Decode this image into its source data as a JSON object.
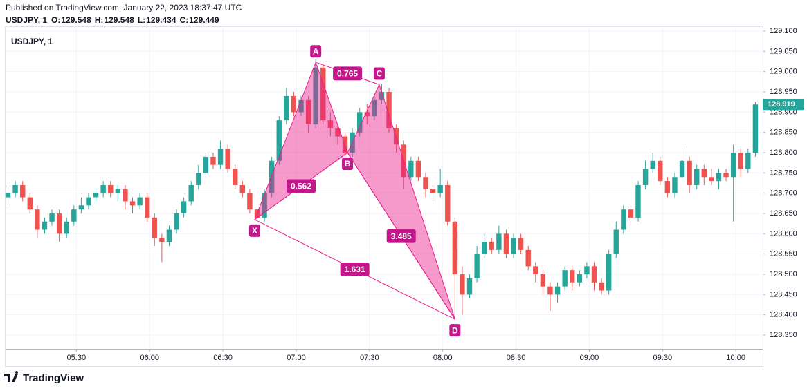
{
  "header": {
    "published": "Published on TradingView.com, January 22, 2023 18:37:47 UTC",
    "symbol": "USDJPY, 1",
    "ohlc": [
      {
        "label": "O:",
        "value": 129.548
      },
      {
        "label": "H:",
        "value": 129.548
      },
      {
        "label": "L:",
        "value": 129.434
      },
      {
        "label": "C:",
        "value": 129.449
      }
    ]
  },
  "footer": {
    "brand": "TradingView"
  },
  "chart_data": {
    "type": "candlestick",
    "title": "USDJPY, 1",
    "x": [
      "05:02",
      "05:05",
      "05:08",
      "05:11",
      "05:14",
      "05:17",
      "05:20",
      "05:23",
      "05:26",
      "05:29",
      "05:32",
      "05:35",
      "05:38",
      "05:41",
      "05:44",
      "05:47",
      "05:50",
      "05:53",
      "05:56",
      "05:59",
      "06:02",
      "06:05",
      "06:08",
      "06:11",
      "06:14",
      "06:17",
      "06:20",
      "06:23",
      "06:26",
      "06:29",
      "06:32",
      "06:35",
      "06:38",
      "06:41",
      "06:44",
      "06:47",
      "06:50",
      "06:53",
      "06:56",
      "06:59",
      "07:02",
      "07:05",
      "07:08",
      "07:11",
      "07:14",
      "07:17",
      "07:20",
      "07:23",
      "07:26",
      "07:29",
      "07:32",
      "07:35",
      "07:38",
      "07:41",
      "07:44",
      "07:47",
      "07:50",
      "07:53",
      "07:56",
      "07:59",
      "08:02",
      "08:05",
      "08:08",
      "08:11",
      "08:14",
      "08:17",
      "08:20",
      "08:23",
      "08:26",
      "08:29",
      "08:32",
      "08:35",
      "08:38",
      "08:41",
      "08:44",
      "08:47",
      "08:50",
      "08:53",
      "08:56",
      "08:59",
      "09:02",
      "09:05",
      "09:08",
      "09:11",
      "09:14",
      "09:17",
      "09:20",
      "09:23",
      "09:26",
      "09:29",
      "09:32",
      "09:35",
      "09:38",
      "09:41",
      "09:44",
      "09:47",
      "09:50",
      "09:53",
      "09:56",
      "09:59",
      "10:02",
      "10:05",
      "10:08"
    ],
    "open": [
      128.69,
      128.7,
      128.72,
      128.69,
      128.66,
      128.61,
      128.63,
      128.65,
      128.6,
      128.63,
      128.66,
      128.67,
      128.69,
      128.7,
      128.72,
      128.7,
      128.71,
      128.68,
      128.67,
      128.69,
      128.64,
      128.59,
      128.58,
      128.61,
      128.65,
      128.68,
      128.72,
      128.75,
      128.79,
      128.77,
      128.81,
      128.76,
      128.72,
      128.7,
      128.66,
      128.64,
      128.7,
      128.78,
      128.88,
      128.94,
      128.9,
      128.93,
      128.87,
      129.01,
      128.88,
      128.86,
      128.84,
      128.8,
      128.85,
      128.9,
      128.89,
      128.93,
      128.95,
      128.86,
      128.82,
      128.74,
      128.78,
      128.74,
      128.71,
      128.7,
      128.72,
      128.63,
      128.5,
      128.45,
      128.49,
      128.55,
      128.58,
      128.56,
      128.6,
      128.55,
      128.59,
      128.56,
      128.52,
      128.5,
      128.47,
      128.45,
      128.47,
      128.51,
      128.48,
      128.5,
      128.52,
      128.48,
      128.46,
      128.55,
      128.61,
      128.66,
      128.64,
      128.72,
      128.76,
      128.78,
      128.73,
      128.7,
      128.74,
      128.78,
      128.72,
      128.76,
      128.74,
      128.73,
      128.75,
      128.74,
      128.8,
      128.76,
      128.8
    ],
    "high": [
      128.72,
      128.73,
      128.73,
      128.7,
      128.67,
      128.64,
      128.66,
      128.66,
      128.64,
      128.67,
      128.69,
      128.7,
      128.71,
      128.73,
      128.73,
      128.72,
      128.72,
      128.69,
      128.7,
      128.7,
      128.65,
      128.6,
      128.62,
      128.66,
      128.69,
      128.73,
      128.77,
      128.8,
      128.8,
      128.83,
      128.82,
      128.77,
      128.73,
      128.71,
      128.67,
      128.71,
      128.79,
      128.89,
      128.96,
      128.95,
      128.94,
      128.94,
      129.03,
      129.02,
      128.9,
      128.87,
      128.85,
      128.86,
      128.91,
      128.92,
      128.94,
      128.97,
      128.96,
      128.87,
      128.83,
      128.79,
      128.79,
      128.75,
      128.72,
      128.76,
      128.73,
      128.64,
      128.52,
      128.5,
      128.57,
      128.6,
      128.59,
      128.62,
      128.61,
      128.6,
      128.6,
      128.57,
      128.53,
      128.51,
      128.48,
      128.48,
      128.52,
      128.52,
      128.51,
      128.53,
      128.53,
      128.49,
      128.56,
      128.63,
      128.67,
      128.67,
      128.73,
      128.78,
      128.8,
      128.79,
      128.74,
      128.75,
      128.81,
      128.79,
      128.77,
      128.77,
      128.76,
      128.76,
      128.76,
      128.82,
      128.81,
      128.81,
      128.925
    ],
    "low": [
      128.67,
      128.69,
      128.68,
      128.65,
      128.59,
      128.6,
      128.62,
      128.58,
      128.59,
      128.62,
      128.65,
      128.66,
      128.68,
      128.69,
      128.69,
      128.68,
      128.66,
      128.65,
      128.66,
      128.63,
      128.57,
      128.53,
      128.57,
      128.6,
      128.64,
      128.67,
      128.71,
      128.74,
      128.76,
      128.76,
      128.75,
      128.71,
      128.69,
      128.65,
      128.62,
      128.63,
      128.69,
      128.77,
      128.87,
      128.89,
      128.89,
      128.85,
      128.86,
      128.87,
      128.84,
      128.82,
      128.79,
      128.79,
      128.84,
      128.87,
      128.88,
      128.92,
      128.85,
      128.8,
      128.71,
      128.73,
      128.73,
      128.69,
      128.68,
      128.69,
      128.62,
      128.39,
      128.4,
      128.44,
      128.48,
      128.54,
      128.55,
      128.55,
      128.54,
      128.54,
      128.55,
      128.51,
      128.48,
      128.45,
      128.41,
      128.43,
      128.46,
      128.46,
      128.47,
      128.49,
      128.46,
      128.45,
      128.45,
      128.54,
      128.6,
      128.62,
      128.63,
      128.71,
      128.75,
      128.72,
      128.69,
      128.69,
      128.73,
      128.7,
      128.71,
      128.72,
      128.72,
      128.71,
      128.73,
      128.63,
      128.74,
      128.75,
      128.79
    ],
    "close": [
      128.7,
      128.72,
      128.69,
      128.66,
      128.61,
      128.63,
      128.65,
      128.6,
      128.63,
      128.66,
      128.67,
      128.69,
      128.7,
      128.72,
      128.7,
      128.71,
      128.68,
      128.67,
      128.69,
      128.64,
      128.59,
      128.58,
      128.61,
      128.65,
      128.68,
      128.72,
      128.75,
      128.79,
      128.77,
      128.81,
      128.76,
      128.72,
      128.7,
      128.66,
      128.64,
      128.7,
      128.78,
      128.88,
      128.94,
      128.9,
      128.93,
      128.87,
      129.01,
      128.88,
      128.86,
      128.84,
      128.8,
      128.85,
      128.9,
      128.89,
      128.93,
      128.95,
      128.86,
      128.82,
      128.74,
      128.78,
      128.74,
      128.71,
      128.7,
      128.72,
      128.63,
      128.5,
      128.45,
      128.49,
      128.55,
      128.58,
      128.56,
      128.6,
      128.55,
      128.59,
      128.56,
      128.52,
      128.5,
      128.47,
      128.45,
      128.47,
      128.51,
      128.48,
      128.5,
      128.52,
      128.48,
      128.46,
      128.55,
      128.61,
      128.66,
      128.64,
      128.72,
      128.76,
      128.78,
      128.73,
      128.7,
      128.74,
      128.78,
      128.72,
      128.76,
      128.74,
      128.73,
      128.75,
      128.74,
      128.8,
      128.76,
      128.8,
      128.919
    ],
    "up_color": "#26a69a",
    "down_color": "#ef5350",
    "xlim": [
      "05:01",
      "10:11"
    ],
    "xticks": [
      "05:30",
      "06:00",
      "06:30",
      "07:00",
      "07:30",
      "08:00",
      "08:30",
      "09:00",
      "09:30",
      "10:00"
    ],
    "ylim": [
      128.316,
      129.112
    ],
    "yticks": [
      {
        "value": 128.35,
        "label": "128.350"
      },
      {
        "value": 128.4,
        "label": "128.400"
      },
      {
        "value": 128.45,
        "label": "128.450"
      },
      {
        "value": 128.5,
        "label": "128.500"
      },
      {
        "value": 128.55,
        "label": "128.550"
      },
      {
        "value": 128.6,
        "label": "128.600"
      },
      {
        "value": 128.65,
        "label": "128.650"
      },
      {
        "value": 128.7,
        "label": "128.700"
      },
      {
        "value": 128.75,
        "label": "128.750"
      },
      {
        "value": 128.8,
        "label": "128.800"
      },
      {
        "value": 128.85,
        "label": "128.850"
      },
      {
        "value": 128.9,
        "label": "128.900"
      },
      {
        "value": 128.95,
        "label": "128.950"
      },
      {
        "value": 129,
        "label": "129.000"
      },
      {
        "value": 129.05,
        "label": "129.050"
      },
      {
        "value": 129.1,
        "label": "129.100"
      }
    ],
    "grid": true,
    "pattern": {
      "color": "#e91e8c",
      "points": [
        {
          "label": "X",
          "x": "06:43",
          "price": 128.635
        },
        {
          "label": "A",
          "x": "07:08",
          "price": 129.023
        },
        {
          "label": "B",
          "x": "07:21",
          "price": 128.8
        },
        {
          "label": "C",
          "x": "07:34",
          "price": 128.968
        },
        {
          "label": "D",
          "x": "08:05",
          "price": 128.389
        }
      ],
      "ratios": [
        0.765,
        0.562,
        3.485,
        1.631
      ]
    }
  }
}
